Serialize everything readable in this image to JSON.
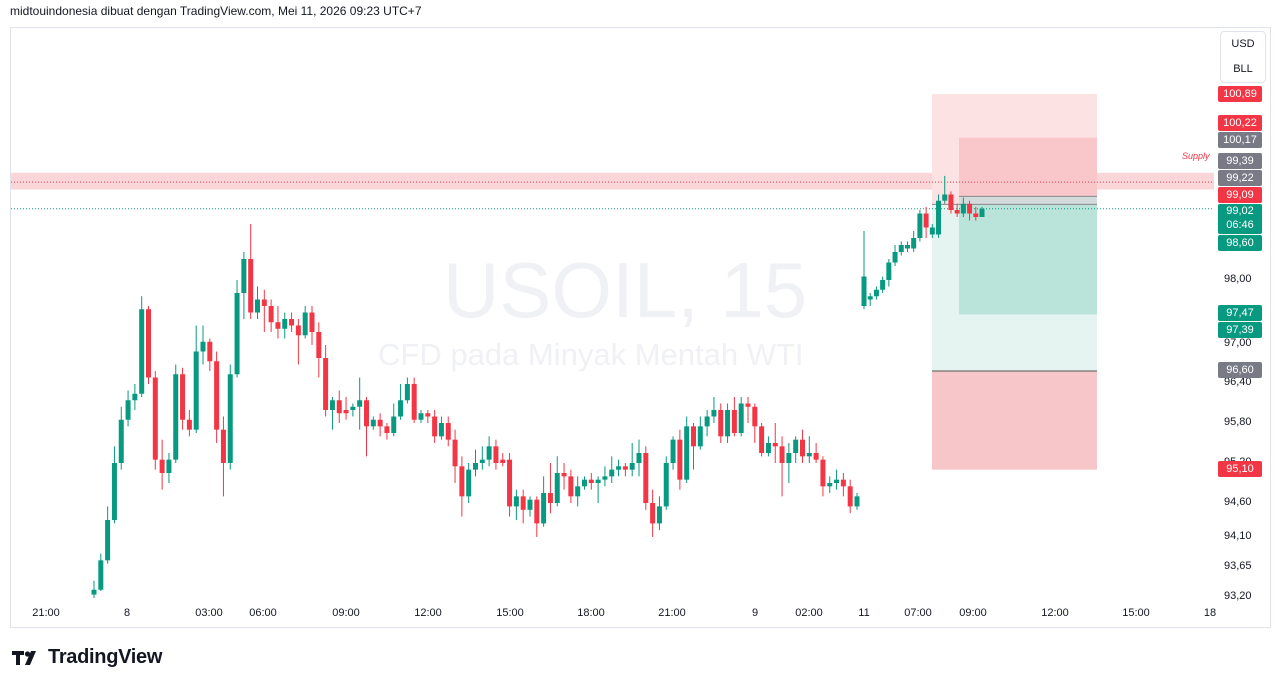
{
  "header": {
    "text": "midtouindonesia dibuat dengan TradingView.com, Mei 11, 2026 09:23 UTC+7"
  },
  "watermark": {
    "symbol": "USOIL, 15",
    "description": "CFD pada Minyak Mentah WTI"
  },
  "currency_box": {
    "currency": "USD",
    "unit": "BLL"
  },
  "brand": {
    "name": "TradingView"
  },
  "colors": {
    "up": "#089981",
    "down": "#f23645",
    "gray": "#787b86",
    "supply_zone": "#f7b4ba",
    "target_zone": "#b2dfd6",
    "stop_zone": "#f7c6c9"
  },
  "chart_data": {
    "type": "candlestick",
    "symbol": "USOIL",
    "interval": "15",
    "ylim": [
      93.2,
      101.4
    ],
    "y_ticks": [
      "98,00",
      "97,00",
      "96,40",
      "95,80",
      "95,20",
      "94,60",
      "94,10",
      "93,65",
      "93,20"
    ],
    "x_ticks": [
      "21:00",
      "8",
      "03:00",
      "06:00",
      "09:00",
      "12:00",
      "15:00",
      "18:00",
      "21:00",
      "9",
      "02:00",
      "11",
      "07:00",
      "09:00",
      "12:00",
      "15:00",
      "18"
    ],
    "annotations": {
      "supply_label": "Supply",
      "supply_zone": [
        99.33,
        99.6
      ],
      "supply_line": 99.45,
      "current_price_line": 99.02
    },
    "price_tags": [
      {
        "value": "100,89",
        "color": "#f23645"
      },
      {
        "value": "100,22",
        "color": "#f23645"
      },
      {
        "value": "100,17",
        "color": "#787b86"
      },
      {
        "value": "99,39",
        "color": "#787b86"
      },
      {
        "value": "99,22",
        "color": "#787b86"
      },
      {
        "value": "99,09",
        "color": "#f23645"
      },
      {
        "value": "99,02",
        "color": "#089981",
        "countdown": "06:46"
      },
      {
        "value": "98,60",
        "color": "#089981"
      },
      {
        "value": "97,47",
        "color": "#089981"
      },
      {
        "value": "97,39",
        "color": "#089981"
      },
      {
        "value": "96,60",
        "color": "#787b86"
      },
      {
        "value": "95,10",
        "color": "#f23645"
      }
    ],
    "positions": [
      {
        "name": "outer",
        "entry": 99.09,
        "stop_top": 100.89,
        "target": 96.6,
        "stop_bottom": 95.1
      },
      {
        "name": "inner",
        "entry": 99.22,
        "stop": 100.17,
        "target": 97.47
      }
    ],
    "candles": [
      [
        "up",
        93.25,
        93.32,
        93.2,
        93.45
      ],
      [
        "up",
        93.32,
        93.75,
        93.3,
        93.85
      ],
      [
        "up",
        93.75,
        94.35,
        93.7,
        94.55
      ],
      [
        "up",
        94.35,
        95.2,
        94.3,
        95.45
      ],
      [
        "up",
        95.2,
        95.85,
        95.1,
        96.05
      ],
      [
        "up",
        95.85,
        96.15,
        95.75,
        96.3
      ],
      [
        "up",
        96.15,
        96.25,
        96.0,
        96.4
      ],
      [
        "up",
        96.25,
        97.55,
        96.2,
        97.75
      ],
      [
        "down",
        97.55,
        96.5,
        96.4,
        97.6
      ],
      [
        "down",
        96.5,
        95.25,
        95.1,
        96.6
      ],
      [
        "down",
        95.25,
        95.05,
        94.8,
        95.55
      ],
      [
        "up",
        95.05,
        95.25,
        94.9,
        95.35
      ],
      [
        "up",
        95.25,
        96.55,
        95.2,
        96.7
      ],
      [
        "down",
        96.55,
        95.85,
        95.7,
        96.65
      ],
      [
        "down",
        95.85,
        95.7,
        95.6,
        96.0
      ],
      [
        "up",
        95.7,
        96.9,
        95.65,
        97.3
      ],
      [
        "up",
        96.9,
        97.05,
        96.7,
        97.3
      ],
      [
        "down",
        97.05,
        96.75,
        96.6,
        97.1
      ],
      [
        "down",
        96.75,
        95.7,
        95.5,
        96.9
      ],
      [
        "down",
        95.7,
        95.2,
        94.7,
        95.9
      ],
      [
        "up",
        95.2,
        96.55,
        95.1,
        96.7
      ],
      [
        "up",
        96.55,
        97.8,
        96.5,
        98.0
      ],
      [
        "up",
        97.8,
        98.3,
        97.4,
        98.4
      ],
      [
        "down",
        98.3,
        97.5,
        97.4,
        98.8
      ],
      [
        "up",
        97.5,
        97.7,
        97.4,
        97.9
      ],
      [
        "down",
        97.7,
        97.6,
        97.2,
        97.85
      ],
      [
        "down",
        97.6,
        97.35,
        97.2,
        97.7
      ],
      [
        "down",
        97.35,
        97.25,
        97.1,
        97.6
      ],
      [
        "up",
        97.25,
        97.4,
        97.1,
        97.5
      ],
      [
        "down",
        97.4,
        97.3,
        97.2,
        97.5
      ],
      [
        "down",
        97.3,
        97.15,
        96.7,
        97.4
      ],
      [
        "up",
        97.15,
        97.5,
        97.1,
        97.6
      ],
      [
        "down",
        97.5,
        97.2,
        97.0,
        97.6
      ],
      [
        "down",
        97.2,
        96.8,
        96.5,
        97.35
      ],
      [
        "down",
        96.8,
        96.0,
        95.9,
        97.0
      ],
      [
        "up",
        96.0,
        96.15,
        95.7,
        96.2
      ],
      [
        "down",
        96.15,
        95.95,
        95.8,
        96.3
      ],
      [
        "down",
        95.95,
        96.0,
        95.85,
        96.2
      ],
      [
        "up",
        96.0,
        96.05,
        95.9,
        96.1
      ],
      [
        "up",
        96.05,
        96.15,
        95.7,
        96.5
      ],
      [
        "down",
        96.15,
        95.75,
        95.3,
        96.2
      ],
      [
        "up",
        95.75,
        95.85,
        95.7,
        95.9
      ],
      [
        "down",
        95.85,
        95.75,
        95.6,
        95.95
      ],
      [
        "down",
        95.75,
        95.65,
        95.55,
        95.8
      ],
      [
        "up",
        95.65,
        95.9,
        95.6,
        96.1
      ],
      [
        "up",
        95.9,
        96.15,
        95.85,
        96.4
      ],
      [
        "up",
        96.15,
        96.4,
        96.1,
        96.5
      ],
      [
        "down",
        96.4,
        95.85,
        95.8,
        96.5
      ],
      [
        "up",
        95.85,
        95.95,
        95.8,
        96.0
      ],
      [
        "down",
        95.95,
        95.9,
        95.8,
        96.0
      ],
      [
        "down",
        95.9,
        95.6,
        95.5,
        96.0
      ],
      [
        "up",
        95.6,
        95.8,
        95.55,
        95.9
      ],
      [
        "down",
        95.8,
        95.55,
        95.45,
        95.9
      ],
      [
        "down",
        95.55,
        95.15,
        94.9,
        95.7
      ],
      [
        "down",
        95.15,
        94.7,
        94.4,
        95.3
      ],
      [
        "up",
        94.7,
        95.1,
        94.6,
        95.2
      ],
      [
        "up",
        95.1,
        95.2,
        95.0,
        95.4
      ],
      [
        "up",
        95.2,
        95.25,
        95.1,
        95.45
      ],
      [
        "up",
        95.25,
        95.45,
        95.15,
        95.6
      ],
      [
        "down",
        95.45,
        95.2,
        95.1,
        95.55
      ],
      [
        "down",
        95.2,
        95.25,
        95.15,
        95.35
      ],
      [
        "down",
        95.25,
        94.55,
        94.4,
        95.35
      ],
      [
        "up",
        94.55,
        94.7,
        94.35,
        94.8
      ],
      [
        "down",
        94.7,
        94.5,
        94.3,
        94.8
      ],
      [
        "up",
        94.5,
        94.65,
        94.4,
        94.7
      ],
      [
        "down",
        94.65,
        94.3,
        94.1,
        94.7
      ],
      [
        "up",
        94.3,
        94.75,
        94.25,
        95.0
      ],
      [
        "down",
        94.75,
        94.6,
        94.45,
        95.2
      ],
      [
        "up",
        94.6,
        95.05,
        94.55,
        95.3
      ],
      [
        "down",
        95.05,
        95.0,
        94.8,
        95.2
      ],
      [
        "down",
        95.0,
        94.7,
        94.6,
        95.1
      ],
      [
        "up",
        94.7,
        94.85,
        94.55,
        95.0
      ],
      [
        "up",
        94.85,
        94.95,
        94.8,
        95.0
      ],
      [
        "down",
        94.95,
        94.9,
        94.8,
        95.05
      ],
      [
        "up",
        94.9,
        94.95,
        94.6,
        95.0
      ],
      [
        "up",
        94.95,
        95.0,
        94.85,
        95.15
      ],
      [
        "up",
        95.0,
        95.1,
        94.9,
        95.3
      ],
      [
        "up",
        95.1,
        95.15,
        95.0,
        95.25
      ],
      [
        "down",
        95.15,
        95.1,
        95.0,
        95.2
      ],
      [
        "up",
        95.1,
        95.2,
        95.0,
        95.5
      ],
      [
        "up",
        95.2,
        95.35,
        95.0,
        95.55
      ],
      [
        "down",
        95.35,
        94.6,
        94.5,
        95.45
      ],
      [
        "down",
        94.6,
        94.3,
        94.1,
        94.8
      ],
      [
        "up",
        94.3,
        94.55,
        94.2,
        94.7
      ],
      [
        "up",
        94.55,
        95.2,
        94.5,
        95.3
      ],
      [
        "up",
        95.2,
        95.55,
        95.1,
        95.6
      ],
      [
        "down",
        95.55,
        94.95,
        94.8,
        95.7
      ],
      [
        "up",
        94.95,
        95.75,
        94.9,
        95.9
      ],
      [
        "down",
        95.75,
        95.45,
        95.1,
        95.8
      ],
      [
        "up",
        95.45,
        95.75,
        95.4,
        95.9
      ],
      [
        "up",
        95.75,
        95.9,
        95.6,
        96.0
      ],
      [
        "up",
        95.9,
        96.0,
        95.8,
        96.2
      ],
      [
        "down",
        96.0,
        95.6,
        95.5,
        96.1
      ],
      [
        "up",
        95.6,
        96.0,
        95.5,
        96.1
      ],
      [
        "down",
        96.0,
        95.65,
        95.6,
        96.2
      ],
      [
        "up",
        95.65,
        96.1,
        95.6,
        96.2
      ],
      [
        "down",
        96.1,
        96.05,
        95.8,
        96.2
      ],
      [
        "down",
        96.05,
        95.75,
        95.5,
        96.1
      ],
      [
        "down",
        95.75,
        95.35,
        95.3,
        95.8
      ],
      [
        "up",
        95.35,
        95.5,
        95.3,
        95.6
      ],
      [
        "down",
        95.5,
        95.45,
        95.2,
        95.8
      ],
      [
        "down",
        95.45,
        95.2,
        94.7,
        95.6
      ],
      [
        "up",
        95.2,
        95.35,
        94.9,
        95.5
      ],
      [
        "up",
        95.35,
        95.55,
        95.2,
        95.6
      ],
      [
        "down",
        95.55,
        95.3,
        95.2,
        95.7
      ],
      [
        "up",
        95.3,
        95.35,
        95.2,
        95.6
      ],
      [
        "down",
        95.35,
        95.25,
        95.2,
        95.5
      ],
      [
        "down",
        95.25,
        94.85,
        94.7,
        95.3
      ],
      [
        "up",
        94.85,
        94.9,
        94.75,
        95.0
      ],
      [
        "up",
        94.9,
        94.95,
        94.8,
        95.1
      ],
      [
        "down",
        94.95,
        94.85,
        94.7,
        95.05
      ],
      [
        "down",
        94.85,
        94.55,
        94.45,
        94.95
      ],
      [
        "up",
        94.55,
        94.7,
        94.5,
        94.75
      ],
      [
        "up",
        97.6,
        98.05,
        97.55,
        98.7
      ],
      [
        "up",
        97.7,
        97.75,
        97.6,
        97.8
      ],
      [
        "up",
        97.75,
        97.85,
        97.7,
        97.9
      ],
      [
        "up",
        97.85,
        98.0,
        97.8,
        98.05
      ],
      [
        "up",
        98.0,
        98.25,
        97.9,
        98.3
      ],
      [
        "up",
        98.25,
        98.4,
        98.2,
        98.5
      ],
      [
        "up",
        98.4,
        98.5,
        98.35,
        98.55
      ],
      [
        "up",
        98.5,
        98.45,
        98.4,
        98.55
      ],
      [
        "up",
        98.45,
        98.6,
        98.4,
        98.7
      ],
      [
        "up",
        98.6,
        98.95,
        98.55,
        99.0
      ],
      [
        "down",
        98.95,
        98.75,
        98.6,
        99.05
      ],
      [
        "up",
        98.75,
        98.65,
        98.6,
        98.8
      ],
      [
        "up",
        98.65,
        99.15,
        98.6,
        99.25
      ],
      [
        "up",
        99.15,
        99.25,
        99.1,
        99.55
      ],
      [
        "down",
        99.25,
        99.0,
        98.95,
        99.3
      ],
      [
        "down",
        99.0,
        98.95,
        98.9,
        99.1
      ],
      [
        "up",
        98.95,
        99.1,
        98.9,
        99.2
      ],
      [
        "down",
        99.1,
        98.95,
        98.85,
        99.15
      ],
      [
        "down",
        98.95,
        98.9,
        98.85,
        99.05
      ],
      [
        "up",
        98.9,
        99.02,
        98.9,
        99.05
      ]
    ]
  }
}
